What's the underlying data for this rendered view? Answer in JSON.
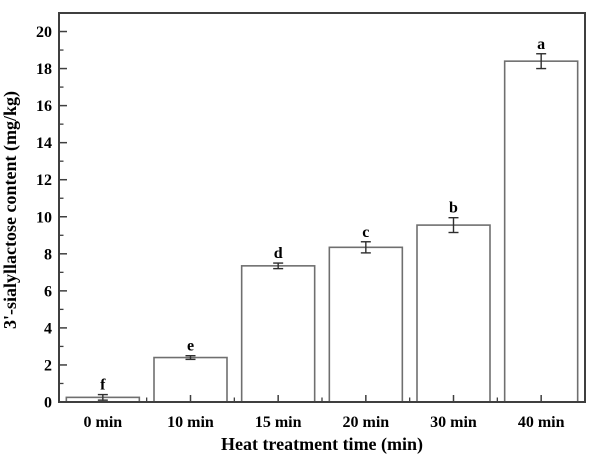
{
  "chart_data": {
    "type": "bar",
    "title": "",
    "xlabel": "Heat treatment time (min)",
    "ylabel": "3'-sialyllactose content (mg/kg)",
    "categories": [
      "0 min",
      "10 min",
      "15 min",
      "20 min",
      "30 min",
      "40 min"
    ],
    "values": [
      0.25,
      2.4,
      7.35,
      8.35,
      9.55,
      18.4
    ],
    "errors": [
      0.15,
      0.1,
      0.15,
      0.3,
      0.4,
      0.4
    ],
    "bar_labels": [
      "f",
      "e",
      "d",
      "c",
      "b",
      "a"
    ],
    "ylim": [
      0,
      21
    ],
    "y_major_ticks": [
      0,
      2,
      4,
      6,
      8,
      10,
      12,
      14,
      16,
      18,
      20
    ],
    "y_minor_step": 1,
    "grid": false,
    "legend": "none",
    "bar_fill": "#ffffff",
    "bar_edge_color": "#6f6f6f",
    "axis_color": "#3f3f3f",
    "error_bar_color": "#2e2e2e",
    "text_color": "#000000",
    "background_color": "#ffffff"
  }
}
